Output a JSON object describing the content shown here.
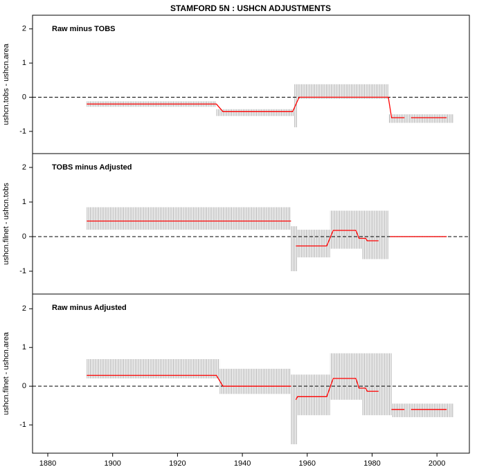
{
  "title": "STAMFORD 5N :  USHCN ADJUSTMENTS",
  "chart_data": [
    {
      "type": "line",
      "title": "Raw minus TOBS",
      "y_label": "ushcn.tobs - ushcn.area",
      "xlim": [
        1875.3,
        2010
      ],
      "ylim": [
        -1.65,
        2.4
      ],
      "yticks": [
        -1,
        0,
        1,
        2
      ],
      "hline": 0,
      "band_color": "#a0a0a0",
      "bands": [
        {
          "x0": 1892,
          "x1": 1932,
          "low": -0.28,
          "high": -0.12
        },
        {
          "x0": 1932,
          "x1": 1956,
          "low": -0.55,
          "high": -0.35
        },
        {
          "x0": 1956,
          "x1": 1957,
          "low": -0.88,
          "high": 0.38
        },
        {
          "x0": 1957,
          "x1": 1985,
          "low": -0.05,
          "high": 0.38
        },
        {
          "x0": 1985,
          "x1": 2005,
          "low": -0.75,
          "high": -0.5
        }
      ],
      "series": [
        {
          "color": "#ff0000",
          "x": [
            1892,
            1932,
            1934,
            1955.5,
            1957.5,
            1985,
            1986,
            1990,
            1991,
            1992,
            2003
          ],
          "values": [
            -0.2,
            -0.2,
            -0.42,
            -0.42,
            0,
            0,
            -0.6,
            -0.6,
            null,
            -0.6,
            -0.6
          ]
        }
      ]
    },
    {
      "type": "line",
      "title": "TOBS minus Adjusted",
      "y_label": "ushcn.filnet - ushcn.tobs",
      "xlim": [
        1875.3,
        2010
      ],
      "ylim": [
        -1.66,
        2.4
      ],
      "yticks": [
        -1,
        0,
        1,
        2
      ],
      "hline": 0,
      "band_color": "#a0a0a0",
      "bands": [
        {
          "x0": 1892,
          "x1": 1955,
          "low": 0.2,
          "high": 0.85
        },
        {
          "x0": 1955,
          "x1": 1957,
          "low": -1.0,
          "high": 0.3
        },
        {
          "x0": 1957,
          "x1": 1967,
          "low": -0.6,
          "high": 0.2
        },
        {
          "x0": 1967,
          "x1": 1977,
          "low": -0.35,
          "high": 0.75
        },
        {
          "x0": 1977,
          "x1": 1985,
          "low": -0.65,
          "high": 0.75
        },
        {
          "x0": 1985,
          "x1": 2003,
          "low": -0.02,
          "high": 0.02
        }
      ],
      "series": [
        {
          "color": "#ff0000",
          "x": [
            1892,
            1955,
            1955.5,
            1956.5,
            1966,
            1968,
            1975,
            1976,
            1978,
            1978.5,
            1982,
            1983,
            1985.5,
            2003
          ],
          "values": [
            0.45,
            0.45,
            null,
            -0.27,
            -0.27,
            0.18,
            0.18,
            -0.05,
            -0.05,
            -0.12,
            -0.12,
            null,
            0,
            0
          ]
        }
      ]
    },
    {
      "type": "line",
      "title": "Raw minus Adjusted",
      "y_label": "ushcn.filnet - ushcn.area",
      "xlim": [
        1875.3,
        2010
      ],
      "ylim": [
        -1.73,
        2.38
      ],
      "yticks": [
        -1,
        0,
        1,
        2
      ],
      "hline": 0,
      "xticks": [
        1880,
        1900,
        1920,
        1940,
        1960,
        1980,
        2000
      ],
      "band_color": "#a0a0a0",
      "bands": [
        {
          "x0": 1892,
          "x1": 1933,
          "low": 0.2,
          "high": 0.7
        },
        {
          "x0": 1933,
          "x1": 1955,
          "low": -0.2,
          "high": 0.45
        },
        {
          "x0": 1955,
          "x1": 1957,
          "low": -1.5,
          "high": 0.3
        },
        {
          "x0": 1957,
          "x1": 1967,
          "low": -0.75,
          "high": 0.3
        },
        {
          "x0": 1967,
          "x1": 1977,
          "low": -0.35,
          "high": 0.85
        },
        {
          "x0": 1977,
          "x1": 1986,
          "low": -0.75,
          "high": 0.85
        },
        {
          "x0": 1986,
          "x1": 2005,
          "low": -0.8,
          "high": -0.45
        }
      ],
      "series": [
        {
          "color": "#ff0000",
          "x": [
            1892,
            1932,
            1934,
            1955,
            1956,
            1956.5,
            1957,
            1966,
            1968,
            1975,
            1976,
            1978,
            1978.5,
            1982,
            1983,
            1986,
            1990,
            1991,
            1992,
            2003
          ],
          "values": [
            0.28,
            0.28,
            0,
            0,
            null,
            -0.35,
            -0.27,
            -0.27,
            0.2,
            0.2,
            -0.05,
            -0.05,
            -0.13,
            -0.13,
            null,
            -0.6,
            -0.6,
            null,
            -0.6,
            -0.6
          ]
        }
      ]
    }
  ]
}
